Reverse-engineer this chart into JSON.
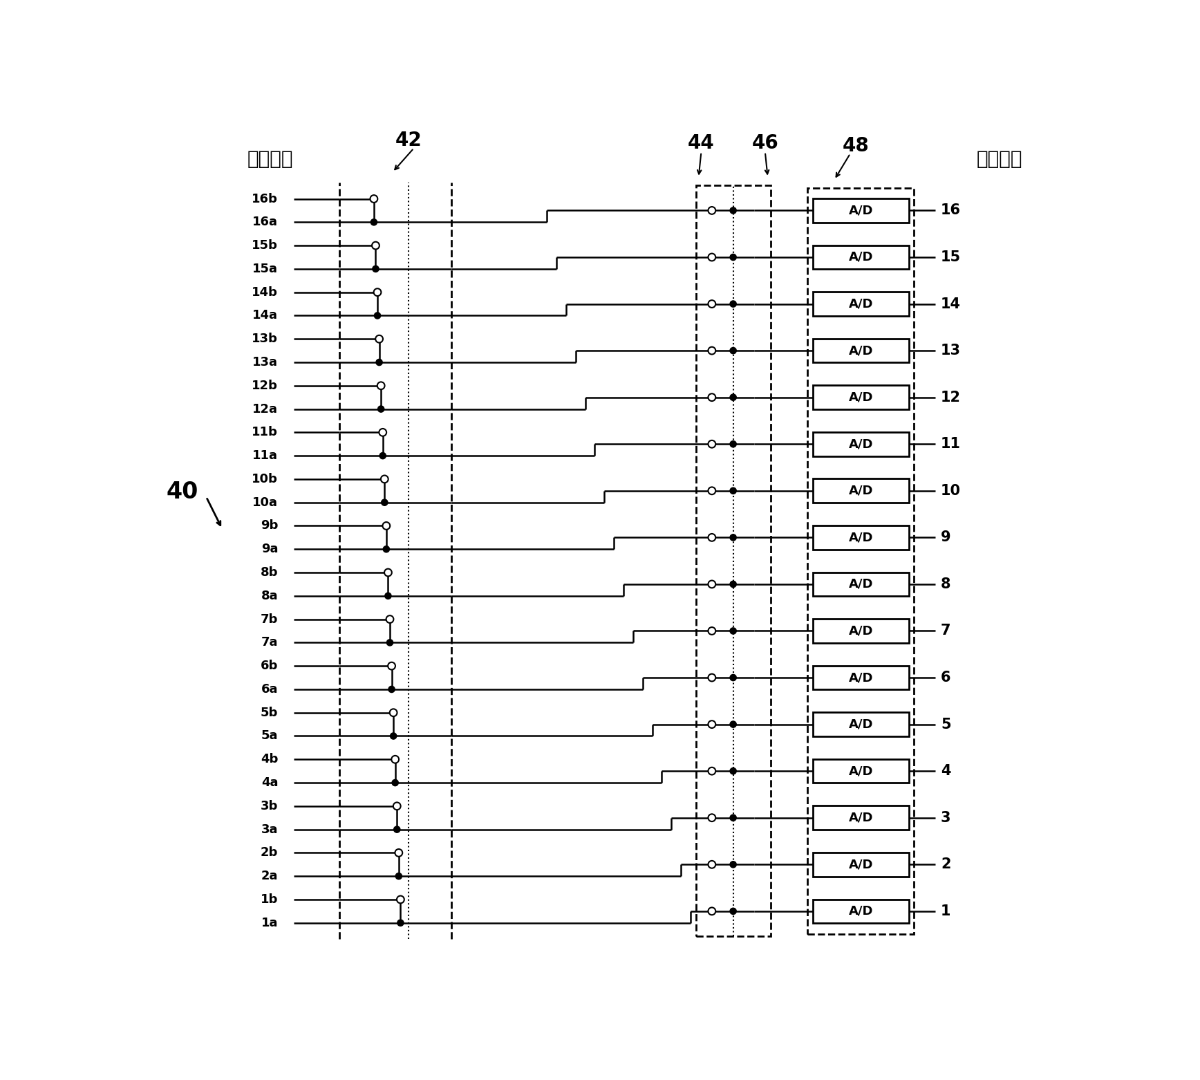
{
  "label_left": "子探测器",
  "label_right": "输出通道",
  "label_40": "40",
  "label_42": "42",
  "label_44": "44",
  "label_46": "46",
  "label_48": "48",
  "row_labels": [
    "16b",
    "16a",
    "15b",
    "15a",
    "14b",
    "14a",
    "13b",
    "13a",
    "12b",
    "12a",
    "11b",
    "11a",
    "10b",
    "10a",
    "9b",
    "9a",
    "8b",
    "8a",
    "7b",
    "7a",
    "6b",
    "6a",
    "5b",
    "5a",
    "4b",
    "4a",
    "3b",
    "3a",
    "2b",
    "2a",
    "1b",
    "1a"
  ],
  "bg_color": "#ffffff"
}
